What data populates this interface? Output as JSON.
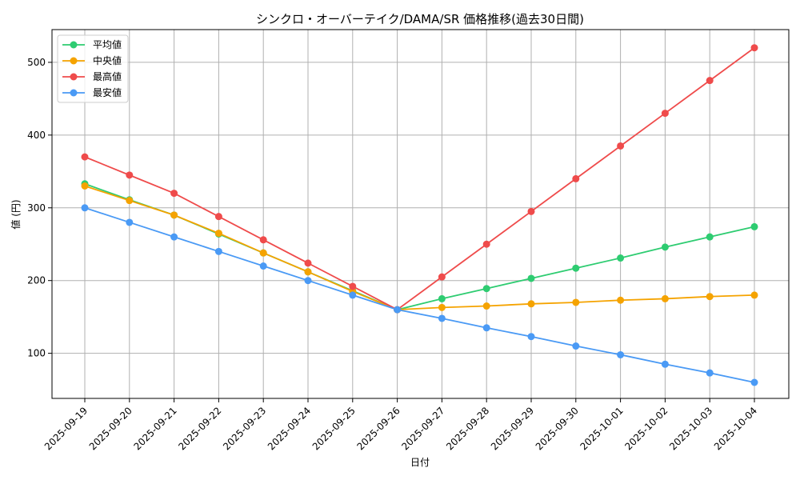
{
  "chart_data": {
    "type": "line",
    "title": "シンクロ・オーバーテイク/DAMA/SR 価格推移(過去30日間)",
    "xlabel": "日付",
    "ylabel": "値 (円)",
    "grid": true,
    "legend_position": "top-left",
    "ylim": [
      38,
      545
    ],
    "yticks": [
      100,
      200,
      300,
      400,
      500
    ],
    "categories": [
      "2025-09-19",
      "2025-09-20",
      "2025-09-21",
      "2025-09-22",
      "2025-09-23",
      "2025-09-24",
      "2025-09-25",
      "2025-09-26",
      "2025-09-27",
      "2025-09-28",
      "2025-09-29",
      "2025-09-30",
      "2025-10-01",
      "2025-10-02",
      "2025-10-03",
      "2025-10-04"
    ],
    "series": [
      {
        "name": "平均値",
        "color": "#2ecc71",
        "values": [
          333,
          311,
          290,
          264,
          238,
          212,
          186,
          160,
          175,
          189,
          203,
          217,
          231,
          246,
          260,
          274
        ]
      },
      {
        "name": "中央値",
        "color": "#f5a300",
        "values": [
          330,
          310,
          290,
          265,
          238,
          212,
          185,
          160,
          163,
          165,
          168,
          170,
          173,
          175,
          178,
          180
        ]
      },
      {
        "name": "最高値",
        "color": "#ef4b4b",
        "values": [
          370,
          345,
          320,
          288,
          256,
          224,
          192,
          160,
          205,
          250,
          295,
          340,
          385,
          430,
          475,
          520
        ]
      },
      {
        "name": "最安値",
        "color": "#4a9af5",
        "values": [
          300,
          280,
          260,
          240,
          220,
          200,
          180,
          160,
          148,
          135,
          123,
          110,
          98,
          85,
          73,
          60
        ]
      }
    ]
  }
}
